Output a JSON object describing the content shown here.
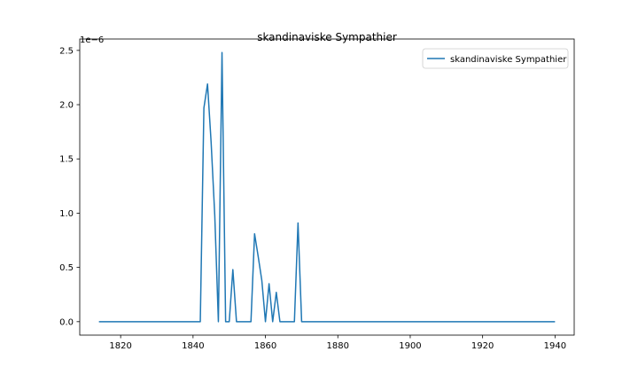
{
  "chart_data": {
    "type": "line",
    "title": "skandinaviske Sympathier",
    "xlabel": "",
    "ylabel": "",
    "y_offset_label": "1e−6",
    "xlim": [
      1808.7,
      1945.3
    ],
    "ylim": [
      -0.124,
      2.605
    ],
    "x_ticks": [
      1820,
      1840,
      1860,
      1880,
      1900,
      1920,
      1940
    ],
    "x_tick_labels": [
      "1820",
      "1840",
      "1860",
      "1880",
      "1900",
      "1920",
      "1940"
    ],
    "y_ticks": [
      0,
      0.5,
      1.0,
      1.5,
      2.0,
      2.5
    ],
    "y_tick_labels": [
      "0.0",
      "0.5",
      "1.0",
      "1.5",
      "2.0",
      "2.5"
    ],
    "grid": false,
    "legend_position": "top-right",
    "series": [
      {
        "name": "skandinaviske Sympathier",
        "color": "#1f77b4",
        "x": [
          1814,
          1842,
          1843,
          1844,
          1845,
          1846,
          1847,
          1848,
          1849,
          1850,
          1851,
          1852,
          1853,
          1854,
          1855,
          1856,
          1857,
          1858,
          1859,
          1860,
          1861,
          1862,
          1863,
          1864,
          1865,
          1866,
          1867,
          1868,
          1869,
          1870,
          1940
        ],
        "y": [
          0,
          0,
          1.97,
          2.19,
          1.65,
          0.98,
          0,
          2.48,
          0,
          0,
          0.48,
          0,
          0,
          0,
          0,
          0,
          0.81,
          0.6,
          0.38,
          0,
          0.35,
          0,
          0.27,
          0,
          0,
          0,
          0,
          0,
          0.91,
          0,
          0
        ]
      }
    ]
  }
}
